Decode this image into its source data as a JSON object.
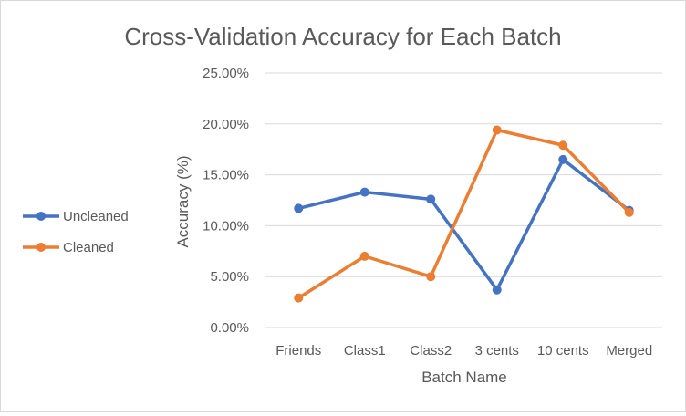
{
  "chart_data": {
    "type": "line",
    "title": "Cross-Validation Accuracy for Each Batch",
    "xlabel": "Batch Name",
    "ylabel": "Accuracy  (%)",
    "categories": [
      "Friends",
      "Class1",
      "Class2",
      "3 cents",
      "10 cents",
      "Merged"
    ],
    "ylim": [
      0,
      25
    ],
    "yticks": [
      "0.00%",
      "5.00%",
      "10.00%",
      "15.00%",
      "20.00%",
      "25.00%"
    ],
    "grid": true,
    "legend_position": "left",
    "series": [
      {
        "name": "Uncleaned",
        "color": "#4472C4",
        "values": [
          11.7,
          13.3,
          12.6,
          3.7,
          16.5,
          11.5
        ]
      },
      {
        "name": "Cleaned",
        "color": "#ED7D31",
        "values": [
          2.9,
          7.0,
          5.0,
          19.4,
          17.9,
          11.3
        ]
      }
    ]
  }
}
